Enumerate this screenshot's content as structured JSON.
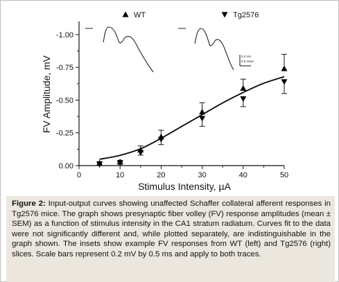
{
  "chart_data": {
    "type": "scatter",
    "xlabel": "Stimulus Intensity, µA",
    "ylabel": "FV Amplitude, mV",
    "xlim": [
      0,
      50
    ],
    "ylim": [
      0,
      -1.1
    ],
    "y_inverted": true,
    "x_ticks": [
      "0",
      "10",
      "20",
      "30",
      "40",
      "50"
    ],
    "y_ticks": [
      "0.00",
      "-0.25",
      "-0.50",
      "-0.75",
      "-1.00"
    ],
    "legend": [
      "WT",
      "Tg2576"
    ],
    "legend_placement": "top",
    "grid": false,
    "series": [
      {
        "name": "WT",
        "marker": "triangle-up",
        "x": [
          5,
          10,
          15,
          20,
          30,
          40,
          50
        ],
        "y": [
          -0.02,
          -0.03,
          -0.12,
          -0.22,
          -0.41,
          -0.59,
          -0.74
        ],
        "sem": [
          0.01,
          0.01,
          0.03,
          0.05,
          0.07,
          0.07,
          0.11
        ]
      },
      {
        "name": "Tg2576",
        "marker": "triangle-down",
        "x": [
          5,
          10,
          15,
          20,
          30,
          40,
          50
        ],
        "y": [
          -0.01,
          -0.02,
          -0.1,
          -0.2,
          -0.36,
          -0.51,
          -0.64
        ],
        "sem": [
          0.01,
          0.01,
          0.02,
          0.04,
          0.06,
          0.06,
          0.09
        ]
      }
    ],
    "fit_curve": {
      "x": [
        5,
        10,
        15,
        20,
        25,
        30,
        35,
        40,
        45,
        50
      ],
      "y": [
        -0.05,
        -0.08,
        -0.13,
        -0.21,
        -0.3,
        -0.39,
        -0.48,
        -0.56,
        -0.63,
        -0.68
      ]
    },
    "inset_scale_label": [
      "0.2 mV",
      "0.5 msec"
    ]
  },
  "caption": {
    "label": "Figure 2:",
    "text": " Input-output curves showing unaffected Schaffer collateral afferent responses in Tg2576 mice. The graph shows presynaptic fiber volley (FV) response amplitudes (mean ± SEM) as a function of stimulus intensity in the CA1 stratum radiatum. Curves fit to the data were not significantly different and, while plotted separately, are indistinguishable in the graph shown. The insets show example FV responses from WT (left) and Tg2576 (right) slices. Scale bars represent 0.2 mV by 0.5 ms and apply to both traces."
  }
}
